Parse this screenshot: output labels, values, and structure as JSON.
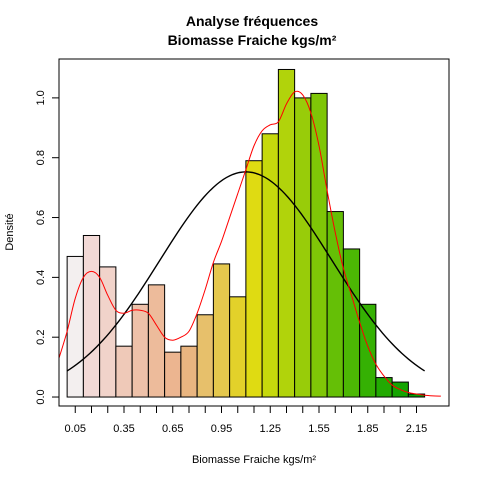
{
  "chart_data": {
    "type": "bar",
    "title": "Analyse fréquences",
    "subtitle": "Biomasse Fraiche kgs/m²",
    "xlabel": "Biomasse Fraiche kgs/m²",
    "ylabel": "Densité",
    "xlim": [
      -0.05,
      2.35
    ],
    "ylim": [
      -0.03,
      1.13
    ],
    "grid": false,
    "x_ticks": [
      0.05,
      0.35,
      0.65,
      0.95,
      1.25,
      1.55,
      1.85,
      2.15
    ],
    "x_tick_labels": [
      "0.05",
      "0.35",
      "0.65",
      "0.95",
      "1.25",
      "1.55",
      "1.85",
      "2.15"
    ],
    "y_ticks": [
      0.0,
      0.2,
      0.4,
      0.6,
      0.8,
      1.0
    ],
    "y_tick_labels": [
      "0.0",
      "0.2",
      "0.4",
      "0.6",
      "0.8",
      "1.0"
    ],
    "bin_width": 0.1,
    "bins": [
      {
        "start": 0.0,
        "value": 0.47,
        "color": "#f3efef"
      },
      {
        "start": 0.1,
        "value": 0.54,
        "color": "#f2d9d6"
      },
      {
        "start": 0.2,
        "value": 0.435,
        "color": "#f1d3ca"
      },
      {
        "start": 0.3,
        "value": 0.17,
        "color": "#efc9b8"
      },
      {
        "start": 0.4,
        "value": 0.31,
        "color": "#eec1a9"
      },
      {
        "start": 0.5,
        "value": 0.375,
        "color": "#edbb9b"
      },
      {
        "start": 0.6,
        "value": 0.15,
        "color": "#ecb590"
      },
      {
        "start": 0.7,
        "value": 0.17,
        "color": "#e9b580"
      },
      {
        "start": 0.8,
        "value": 0.275,
        "color": "#e7c06b"
      },
      {
        "start": 0.9,
        "value": 0.445,
        "color": "#e5c84d"
      },
      {
        "start": 1.0,
        "value": 0.335,
        "color": "#e3d12a"
      },
      {
        "start": 1.1,
        "value": 0.79,
        "color": "#dfdb12"
      },
      {
        "start": 1.2,
        "value": 0.88,
        "color": "#c6d90c"
      },
      {
        "start": 1.3,
        "value": 1.095,
        "color": "#b1d30b"
      },
      {
        "start": 1.4,
        "value": 1.0,
        "color": "#98cc09"
      },
      {
        "start": 1.5,
        "value": 1.015,
        "color": "#7fc607"
      },
      {
        "start": 1.6,
        "value": 0.62,
        "color": "#65bf06"
      },
      {
        "start": 1.7,
        "value": 0.495,
        "color": "#4cb804"
      },
      {
        "start": 1.8,
        "value": 0.31,
        "color": "#35b103"
      },
      {
        "start": 1.9,
        "value": 0.065,
        "color": "#22aa02"
      },
      {
        "start": 2.0,
        "value": 0.05,
        "color": "#14a401"
      },
      {
        "start": 2.1,
        "value": 0.01,
        "color": "#0aa000"
      }
    ],
    "overlays": [
      {
        "type": "normal-curve",
        "color": "#000000",
        "mean": 1.1,
        "sd": 0.53
      },
      {
        "type": "density-curve",
        "color": "#ff0000",
        "x": [
          -0.05,
          0.0,
          0.05,
          0.1,
          0.15,
          0.2,
          0.25,
          0.3,
          0.35,
          0.4,
          0.45,
          0.5,
          0.55,
          0.6,
          0.65,
          0.7,
          0.75,
          0.8,
          0.85,
          0.9,
          0.95,
          1.0,
          1.05,
          1.1,
          1.15,
          1.2,
          1.25,
          1.3,
          1.35,
          1.4,
          1.45,
          1.5,
          1.55,
          1.6,
          1.65,
          1.7,
          1.75,
          1.8,
          1.85,
          1.9,
          1.95,
          2.0,
          2.05,
          2.1,
          2.15,
          2.2,
          2.25,
          2.3
        ],
        "y": [
          0.13,
          0.22,
          0.33,
          0.4,
          0.42,
          0.4,
          0.34,
          0.29,
          0.28,
          0.29,
          0.29,
          0.28,
          0.24,
          0.2,
          0.19,
          0.2,
          0.22,
          0.28,
          0.36,
          0.45,
          0.52,
          0.6,
          0.68,
          0.76,
          0.84,
          0.89,
          0.91,
          0.92,
          0.98,
          1.02,
          1.01,
          0.95,
          0.84,
          0.69,
          0.55,
          0.43,
          0.34,
          0.25,
          0.17,
          0.11,
          0.07,
          0.04,
          0.025,
          0.015,
          0.01,
          0.006,
          0.004,
          0.003
        ]
      }
    ]
  }
}
